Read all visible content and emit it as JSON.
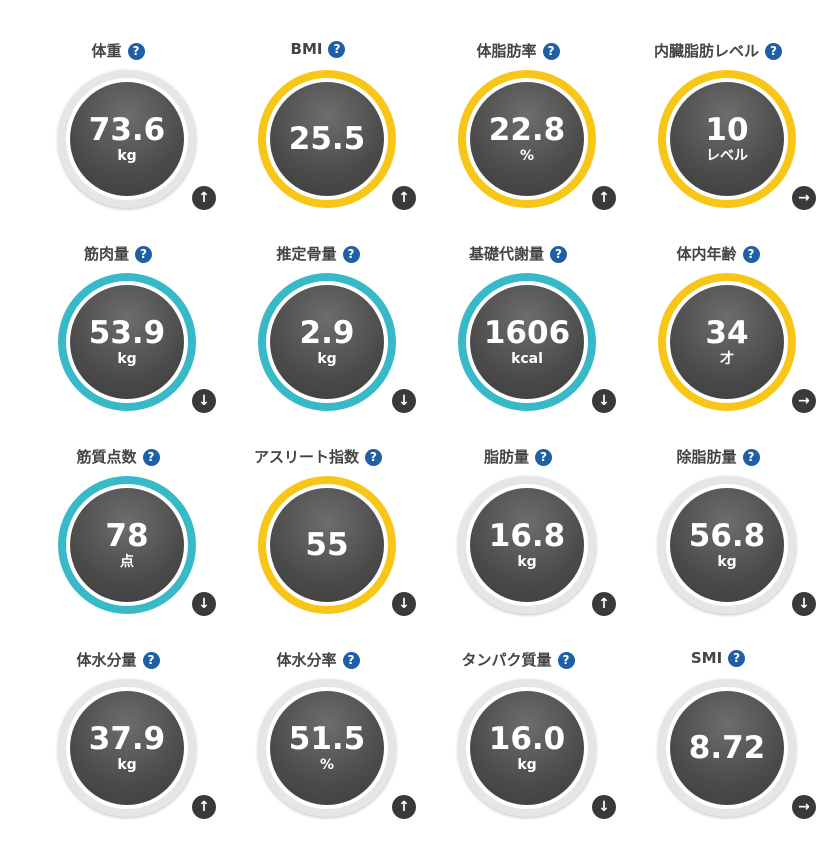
{
  "metrics": [
    {
      "label": "体重",
      "value": "73.6",
      "unit": "kg",
      "ring": "gray",
      "trend_icon": "↑"
    },
    {
      "label": "BMI",
      "value": "25.5",
      "unit": "",
      "ring": "yellow",
      "trend_icon": "↑"
    },
    {
      "label": "体脂肪率",
      "value": "22.8",
      "unit": "%",
      "ring": "yellow",
      "trend_icon": "↑"
    },
    {
      "label": "内臓脂肪レベル",
      "value": "10",
      "unit": "レベル",
      "ring": "yellow",
      "trend_icon": "→"
    },
    {
      "label": "筋肉量",
      "value": "53.9",
      "unit": "kg",
      "ring": "teal",
      "trend_icon": "↓"
    },
    {
      "label": "推定骨量",
      "value": "2.9",
      "unit": "kg",
      "ring": "teal",
      "trend_icon": "↓"
    },
    {
      "label": "基礎代謝量",
      "value": "1606",
      "unit": "kcal",
      "ring": "teal",
      "trend_icon": "↓"
    },
    {
      "label": "体内年齢",
      "value": "34",
      "unit": "才",
      "ring": "yellow",
      "trend_icon": "→"
    },
    {
      "label": "筋質点数",
      "value": "78",
      "unit": "点",
      "ring": "teal",
      "trend_icon": "↓"
    },
    {
      "label": "アスリート指数",
      "value": "55",
      "unit": "",
      "ring": "yellow",
      "trend_icon": "↓"
    },
    {
      "label": "脂肪量",
      "value": "16.8",
      "unit": "kg",
      "ring": "gray",
      "trend_icon": "↑"
    },
    {
      "label": "除脂肪量",
      "value": "56.8",
      "unit": "kg",
      "ring": "gray",
      "trend_icon": "↓"
    },
    {
      "label": "体水分量",
      "value": "37.9",
      "unit": "kg",
      "ring": "gray",
      "trend_icon": "↑"
    },
    {
      "label": "体水分率",
      "value": "51.5",
      "unit": "%",
      "ring": "gray",
      "trend_icon": "↑"
    },
    {
      "label": "タンパク質量",
      "value": "16.0",
      "unit": "kg",
      "ring": "gray",
      "trend_icon": "↓"
    },
    {
      "label": "SMI",
      "value": "8.72",
      "unit": "",
      "ring": "gray",
      "trend_icon": "→"
    }
  ],
  "help_icon_text": "?",
  "colors": {
    "yellow": "#f7c617",
    "teal": "#38b9c8",
    "gray": "#e6e6e6",
    "help": "#1f5fa6",
    "trend": "#3a3a3a"
  }
}
